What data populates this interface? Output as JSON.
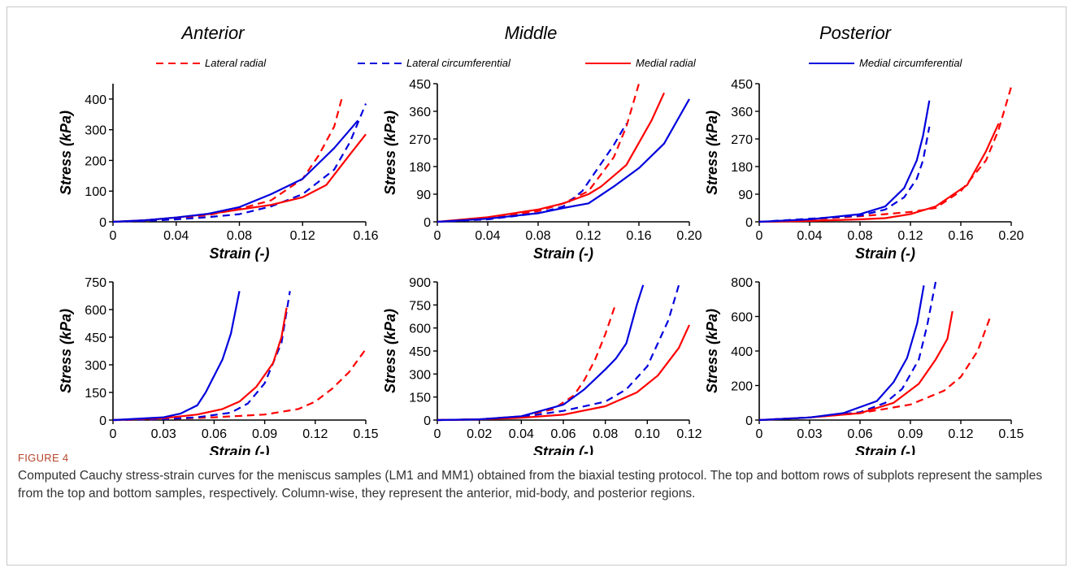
{
  "figure": {
    "label": "FIGURE 4",
    "caption": "Computed Cauchy stress-strain curves for the meniscus samples (LM1 and MM1) obtained from the biaxial testing protocol. The top and bottom rows of subplots represent the samples from the top and bottom samples, respectively. Column-wise, they represent the anterior, mid-body, and posterior regions."
  },
  "column_titles": [
    "Anterior",
    "Middle",
    "Posterior"
  ],
  "legend": [
    {
      "name": "Lateral radial",
      "color": "#ff0000",
      "dash": true
    },
    {
      "name": "Lateral circumferential",
      "color": "#0000dd",
      "dash": true
    },
    {
      "name": "Medial radial",
      "color": "#ff0000",
      "dash": false
    },
    {
      "name": "Medial circumferential",
      "color": "#0000dd",
      "dash": false
    }
  ],
  "chart_data": [
    {
      "type": "line",
      "id": "top-anterior",
      "xlabel": "Strain (-)",
      "ylabel": "Stress (kPa)",
      "xlim": [
        0,
        0.16
      ],
      "ylim": [
        0,
        450
      ],
      "xticks": [
        0,
        0.04,
        0.08,
        0.12,
        0.16
      ],
      "xtick_labels": [
        "0",
        "0.04",
        "0.08",
        "0.12",
        "0.16"
      ],
      "yticks": [
        0,
        100,
        200,
        300,
        400
      ],
      "ytick_labels": [
        "0",
        "100",
        "200",
        "300",
        "400"
      ],
      "series": [
        {
          "name": "Lateral radial",
          "x": [
            0,
            0.02,
            0.04,
            0.06,
            0.08,
            0.1,
            0.12,
            0.13,
            0.14,
            0.145
          ],
          "y": [
            0,
            4,
            12,
            22,
            42,
            70,
            140,
            215,
            310,
            405
          ]
        },
        {
          "name": "Lateral circumferential",
          "x": [
            0,
            0.02,
            0.04,
            0.06,
            0.08,
            0.1,
            0.12,
            0.14,
            0.15,
            0.16
          ],
          "y": [
            0,
            3,
            8,
            15,
            25,
            50,
            90,
            170,
            260,
            385
          ]
        },
        {
          "name": "Medial radial",
          "x": [
            0,
            0.02,
            0.04,
            0.06,
            0.08,
            0.1,
            0.12,
            0.135,
            0.15,
            0.16
          ],
          "y": [
            0,
            5,
            14,
            25,
            40,
            55,
            80,
            120,
            220,
            285
          ]
        },
        {
          "name": "Medial circumferential",
          "x": [
            0,
            0.02,
            0.04,
            0.06,
            0.08,
            0.1,
            0.12,
            0.14,
            0.155
          ],
          "y": [
            0,
            5,
            14,
            26,
            48,
            90,
            140,
            240,
            330
          ]
        }
      ]
    },
    {
      "type": "line",
      "id": "top-middle",
      "xlabel": "Strain (-)",
      "ylabel": "Stress (kPa)",
      "xlim": [
        0,
        0.2
      ],
      "ylim": [
        0,
        450
      ],
      "xticks": [
        0,
        0.04,
        0.08,
        0.12,
        0.16,
        0.2
      ],
      "xtick_labels": [
        "0",
        "0.04",
        "0.08",
        "0.12",
        "0.16",
        "0.20"
      ],
      "yticks": [
        0,
        90,
        180,
        270,
        360,
        450
      ],
      "ytick_labels": [
        "0",
        "90",
        "180",
        "270",
        "360",
        "450"
      ],
      "series": [
        {
          "name": "Lateral radial",
          "x": [
            0,
            0.04,
            0.08,
            0.1,
            0.12,
            0.14,
            0.15,
            0.16
          ],
          "y": [
            0,
            10,
            35,
            60,
            100,
            210,
            310,
            450
          ]
        },
        {
          "name": "Lateral circumferential",
          "x": [
            0,
            0.04,
            0.08,
            0.1,
            0.115,
            0.13,
            0.14,
            0.15
          ],
          "y": [
            0,
            8,
            28,
            50,
            100,
            190,
            250,
            320
          ]
        },
        {
          "name": "Medial radial",
          "x": [
            0,
            0.04,
            0.08,
            0.1,
            0.12,
            0.13,
            0.15,
            0.17,
            0.18
          ],
          "y": [
            0,
            15,
            40,
            60,
            90,
            115,
            185,
            330,
            420
          ]
        },
        {
          "name": "Medial circumferential",
          "x": [
            0,
            0.04,
            0.08,
            0.1,
            0.12,
            0.14,
            0.16,
            0.18,
            0.2
          ],
          "y": [
            0,
            10,
            28,
            45,
            60,
            115,
            175,
            255,
            400
          ]
        }
      ]
    },
    {
      "type": "line",
      "id": "top-posterior",
      "xlabel": "Strain (-)",
      "ylabel": "Stress (kPa)",
      "xlim": [
        0,
        0.2
      ],
      "ylim": [
        0,
        450
      ],
      "xticks": [
        0,
        0.04,
        0.08,
        0.12,
        0.16,
        0.2
      ],
      "xtick_labels": [
        "0",
        "0.04",
        "0.08",
        "0.12",
        "0.16",
        "0.20"
      ],
      "yticks": [
        0,
        90,
        180,
        270,
        360,
        450
      ],
      "ytick_labels": [
        "0",
        "90",
        "180",
        "270",
        "360",
        "450"
      ],
      "series": [
        {
          "name": "Lateral radial",
          "x": [
            0,
            0.04,
            0.08,
            0.12,
            0.14,
            0.16,
            0.18,
            0.19,
            0.2
          ],
          "y": [
            0,
            8,
            18,
            32,
            45,
            100,
            200,
            300,
            440
          ]
        },
        {
          "name": "Lateral circumferential",
          "x": [
            0,
            0.04,
            0.08,
            0.1,
            0.115,
            0.125,
            0.13,
            0.135
          ],
          "y": [
            0,
            10,
            20,
            40,
            80,
            140,
            200,
            310
          ]
        },
        {
          "name": "Medial radial",
          "x": [
            0,
            0.04,
            0.08,
            0.1,
            0.12,
            0.14,
            0.165,
            0.18,
            0.19
          ],
          "y": [
            0,
            3,
            8,
            12,
            25,
            50,
            120,
            230,
            320
          ]
        },
        {
          "name": "Medial circumferential",
          "x": [
            0,
            0.04,
            0.08,
            0.1,
            0.115,
            0.125,
            0.13,
            0.135
          ],
          "y": [
            0,
            8,
            25,
            50,
            110,
            200,
            280,
            395
          ]
        }
      ]
    },
    {
      "type": "line",
      "id": "bottom-anterior",
      "xlabel": "Strain (-)",
      "ylabel": "Stress (kPa)",
      "xlim": [
        0,
        0.15
      ],
      "ylim": [
        0,
        750
      ],
      "xticks": [
        0,
        0.03,
        0.06,
        0.09,
        0.12,
        0.15
      ],
      "xtick_labels": [
        "0",
        "0.03",
        "0.06",
        "0.09",
        "0.12",
        "0.15"
      ],
      "yticks": [
        0,
        150,
        300,
        450,
        600,
        750
      ],
      "ytick_labels": [
        "0",
        "150",
        "300",
        "450",
        "600",
        "750"
      ],
      "series": [
        {
          "name": "Lateral radial",
          "x": [
            0,
            0.03,
            0.06,
            0.09,
            0.11,
            0.12,
            0.13,
            0.14,
            0.15
          ],
          "y": [
            0,
            5,
            15,
            30,
            60,
            100,
            170,
            260,
            385
          ]
        },
        {
          "name": "Lateral circumferential",
          "x": [
            0,
            0.03,
            0.05,
            0.07,
            0.08,
            0.09,
            0.1,
            0.105
          ],
          "y": [
            0,
            5,
            15,
            40,
            90,
            200,
            420,
            700
          ]
        },
        {
          "name": "Medial radial",
          "x": [
            0,
            0.03,
            0.05,
            0.065,
            0.075,
            0.085,
            0.095,
            0.1,
            0.103
          ],
          "y": [
            0,
            10,
            30,
            60,
            100,
            180,
            310,
            450,
            610
          ]
        },
        {
          "name": "Medial circumferential",
          "x": [
            0,
            0.03,
            0.04,
            0.05,
            0.055,
            0.06,
            0.065,
            0.07,
            0.075
          ],
          "y": [
            0,
            15,
            35,
            80,
            150,
            240,
            330,
            470,
            700
          ]
        }
      ]
    },
    {
      "type": "line",
      "id": "bottom-middle",
      "xlabel": "Strain (-)",
      "ylabel": "Stress (kPa)",
      "xlim": [
        0,
        0.12
      ],
      "ylim": [
        0,
        900
      ],
      "xticks": [
        0,
        0.02,
        0.04,
        0.06,
        0.08,
        0.1,
        0.12
      ],
      "xtick_labels": [
        "0",
        "0.02",
        "0.04",
        "0.06",
        "0.08",
        "0.10",
        "0.12"
      ],
      "yticks": [
        0,
        150,
        300,
        450,
        600,
        750,
        900
      ],
      "ytick_labels": [
        "0",
        "150",
        "300",
        "450",
        "600",
        "750",
        "900"
      ],
      "series": [
        {
          "name": "Lateral radial",
          "x": [
            0,
            0.02,
            0.04,
            0.055,
            0.065,
            0.07,
            0.075,
            0.08,
            0.085
          ],
          "y": [
            0,
            5,
            25,
            70,
            160,
            260,
            390,
            560,
            760
          ]
        },
        {
          "name": "Lateral circumferential",
          "x": [
            0,
            0.02,
            0.04,
            0.06,
            0.08,
            0.09,
            0.1,
            0.11,
            0.115
          ],
          "y": [
            0,
            5,
            20,
            60,
            120,
            200,
            350,
            650,
            880
          ]
        },
        {
          "name": "Medial radial",
          "x": [
            0,
            0.02,
            0.04,
            0.06,
            0.08,
            0.095,
            0.105,
            0.115,
            0.12
          ],
          "y": [
            0,
            5,
            15,
            35,
            90,
            180,
            290,
            470,
            620
          ]
        },
        {
          "name": "Medial circumferential",
          "x": [
            0,
            0.02,
            0.04,
            0.06,
            0.07,
            0.08,
            0.085,
            0.09,
            0.095,
            0.098
          ],
          "y": [
            0,
            5,
            25,
            100,
            200,
            330,
            400,
            500,
            750,
            880
          ]
        }
      ]
    },
    {
      "type": "line",
      "id": "bottom-posterior",
      "xlabel": "Strain (-)",
      "ylabel": "Stress (kPa)",
      "xlim": [
        0,
        0.15
      ],
      "ylim": [
        0,
        800
      ],
      "xticks": [
        0,
        0.03,
        0.06,
        0.09,
        0.12,
        0.15
      ],
      "xtick_labels": [
        "0",
        "0.03",
        "0.06",
        "0.09",
        "0.12",
        "0.15"
      ],
      "yticks": [
        0,
        200,
        400,
        600,
        800
      ],
      "ytick_labels": [
        "0",
        "200",
        "400",
        "600",
        "800"
      ],
      "series": [
        {
          "name": "Lateral radial",
          "x": [
            0,
            0.03,
            0.06,
            0.09,
            0.11,
            0.12,
            0.13,
            0.138
          ],
          "y": [
            0,
            15,
            40,
            90,
            170,
            250,
            400,
            610
          ]
        },
        {
          "name": "Lateral circumferential",
          "x": [
            0,
            0.03,
            0.06,
            0.075,
            0.085,
            0.095,
            0.1,
            0.105
          ],
          "y": [
            0,
            15,
            45,
            100,
            180,
            350,
            550,
            800
          ]
        },
        {
          "name": "Medial radial",
          "x": [
            0,
            0.03,
            0.06,
            0.08,
            0.095,
            0.105,
            0.112,
            0.115
          ],
          "y": [
            0,
            15,
            40,
            100,
            210,
            350,
            470,
            630
          ]
        },
        {
          "name": "Medial circumferential",
          "x": [
            0,
            0.03,
            0.05,
            0.07,
            0.08,
            0.088,
            0.094,
            0.098
          ],
          "y": [
            0,
            15,
            40,
            110,
            220,
            360,
            560,
            780
          ]
        }
      ]
    }
  ]
}
